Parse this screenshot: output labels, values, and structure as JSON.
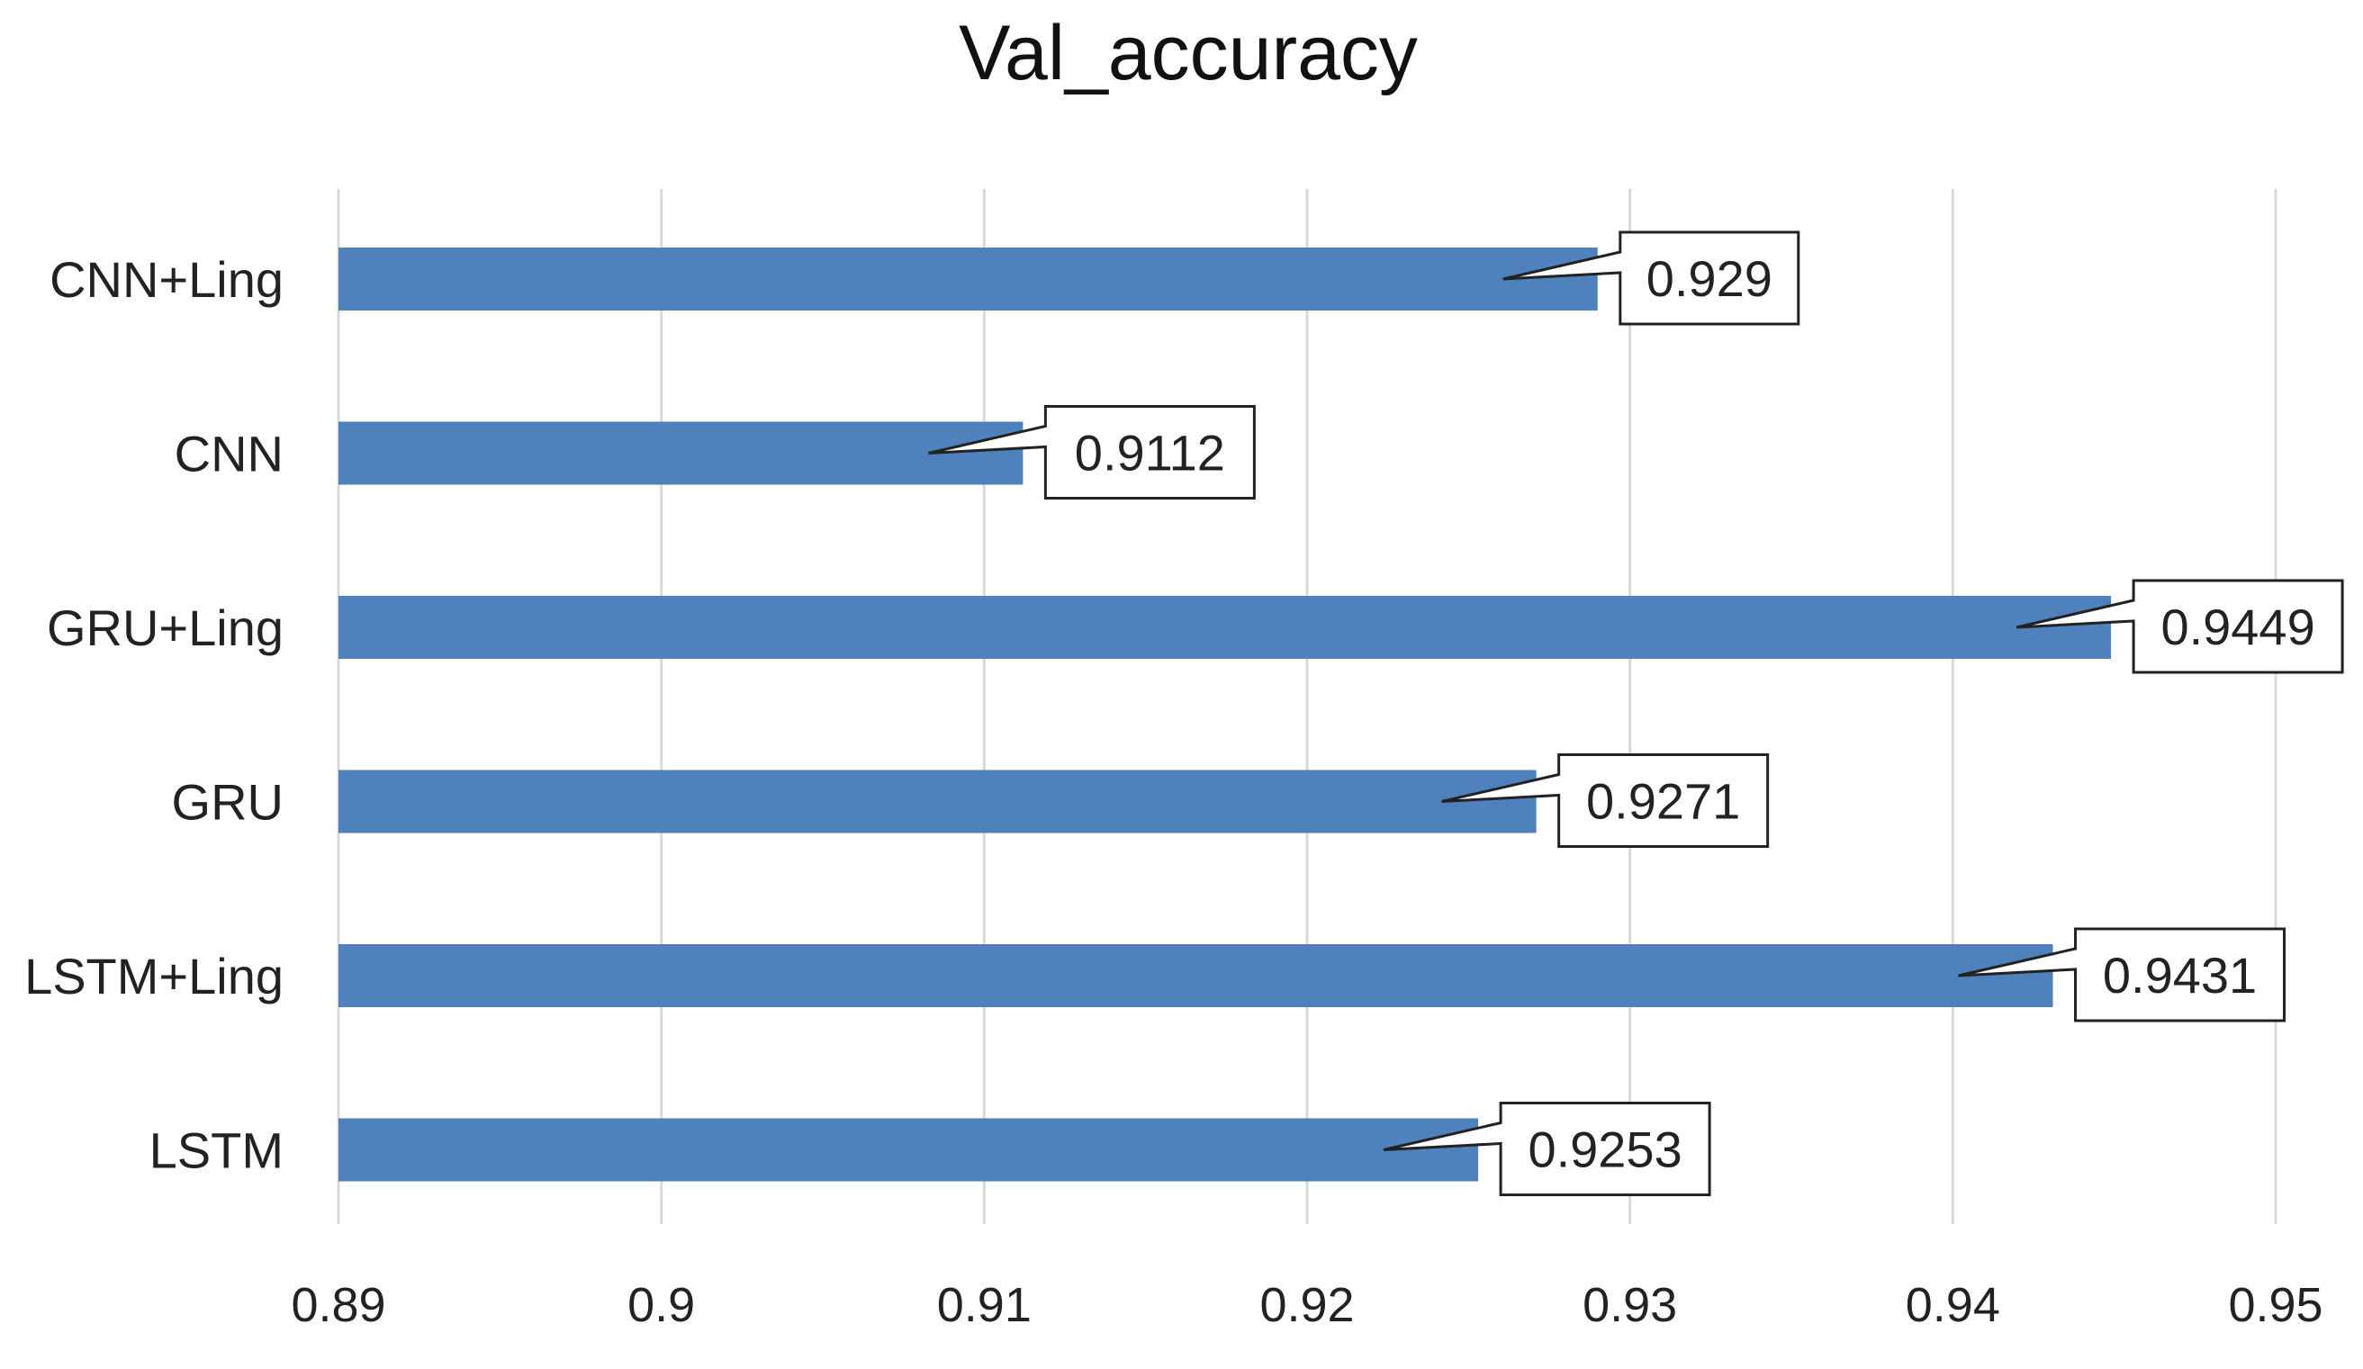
{
  "chart_data": {
    "type": "bar",
    "orientation": "horizontal",
    "title": "Val_accuracy",
    "xlabel": "",
    "ylabel": "",
    "categories": [
      "CNN+Ling",
      "CNN",
      "GRU+Ling",
      "GRU",
      "LSTM+Ling",
      "LSTM"
    ],
    "values": [
      0.929,
      0.9112,
      0.9449,
      0.9271,
      0.9431,
      0.9253
    ],
    "data_labels": [
      "0.929",
      "0.9112",
      "0.9449",
      "0.9271",
      "0.9431",
      "0.9253"
    ],
    "xlim": [
      0.89,
      0.95
    ],
    "x_ticks": [
      0.89,
      0.9,
      0.91,
      0.92,
      0.93,
      0.94,
      0.95
    ],
    "x_tick_labels": [
      "0.89",
      "0.9",
      "0.91",
      "0.92",
      "0.93",
      "0.94",
      "0.95"
    ],
    "grid": "vertical",
    "legend": "none",
    "bar_color": "#4f81bd"
  }
}
